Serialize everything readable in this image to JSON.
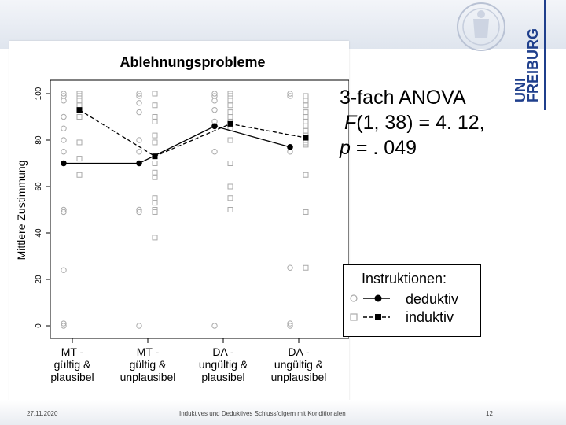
{
  "slide": {
    "anova_line1": "3-fach ANOVA",
    "anova_f_symbol": "F",
    "anova_f_rest": "(1, 38) = 4. 12,",
    "anova_p_symbol": "p",
    "anova_p_rest": " = . 049",
    "footer_date": "27.11.2020",
    "footer_title": "Induktives und Deduktives Schlussfolgern mit Konditionalen",
    "footer_page": "12",
    "logo_line1": "UNI",
    "logo_line2": "FREIBURG"
  },
  "colors": {
    "logo_blue": "#1f3f8c",
    "series_line": "#000000",
    "individual_points": "#aaaaaa"
  },
  "chart_data": {
    "type": "line",
    "title": "Ablehnungsprobleme",
    "xlabel": "",
    "ylabel": "Mittlere Zustimmung",
    "categories": [
      [
        "MT -",
        "gültig &",
        "plausibel"
      ],
      [
        "MT -",
        "gültig &",
        "unplausibel"
      ],
      [
        "DA -",
        "ungültig &",
        "plausibel"
      ],
      [
        "DA -",
        "ungültig &",
        "unplausibel"
      ]
    ],
    "ylim": [
      0,
      100
    ],
    "yticks": [
      0,
      20,
      40,
      60,
      80,
      100
    ],
    "legend": {
      "title": "Instruktionen:",
      "placement": "right"
    },
    "series": [
      {
        "name": "deduktiv",
        "marker": "circle",
        "line": "solid",
        "values": [
          70,
          70,
          86,
          77
        ]
      },
      {
        "name": "induktiv",
        "marker": "square",
        "line": "dashed",
        "values": [
          93,
          73,
          87,
          81
        ]
      }
    ],
    "individual_points": [
      {
        "series": "deduktiv",
        "category": 0,
        "values": [
          100,
          99,
          97,
          90,
          85,
          80,
          75,
          50,
          49,
          24,
          1,
          0
        ]
      },
      {
        "series": "induktiv",
        "category": 0,
        "values": [
          100,
          99,
          97,
          95,
          90,
          79,
          72,
          65
        ]
      },
      {
        "series": "deduktiv",
        "category": 1,
        "values": [
          100,
          99,
          96,
          92,
          80,
          75,
          50,
          49,
          0
        ]
      },
      {
        "series": "induktiv",
        "category": 1,
        "values": [
          100,
          95,
          90,
          88,
          82,
          79,
          70,
          66,
          64,
          55,
          53,
          50,
          49,
          38
        ]
      },
      {
        "series": "deduktiv",
        "category": 2,
        "values": [
          100,
          99,
          97,
          93,
          88,
          75,
          0
        ]
      },
      {
        "series": "induktiv",
        "category": 2,
        "values": [
          100,
          99,
          97,
          95,
          92,
          90,
          88,
          85,
          80,
          70,
          60,
          55,
          50
        ]
      },
      {
        "series": "deduktiv",
        "category": 3,
        "values": [
          100,
          99,
          75,
          25,
          1,
          0
        ]
      },
      {
        "series": "induktiv",
        "category": 3,
        "values": [
          99,
          97,
          95,
          92,
          90,
          88,
          86,
          84,
          82,
          80,
          79,
          78,
          65,
          49,
          25
        ]
      }
    ]
  }
}
